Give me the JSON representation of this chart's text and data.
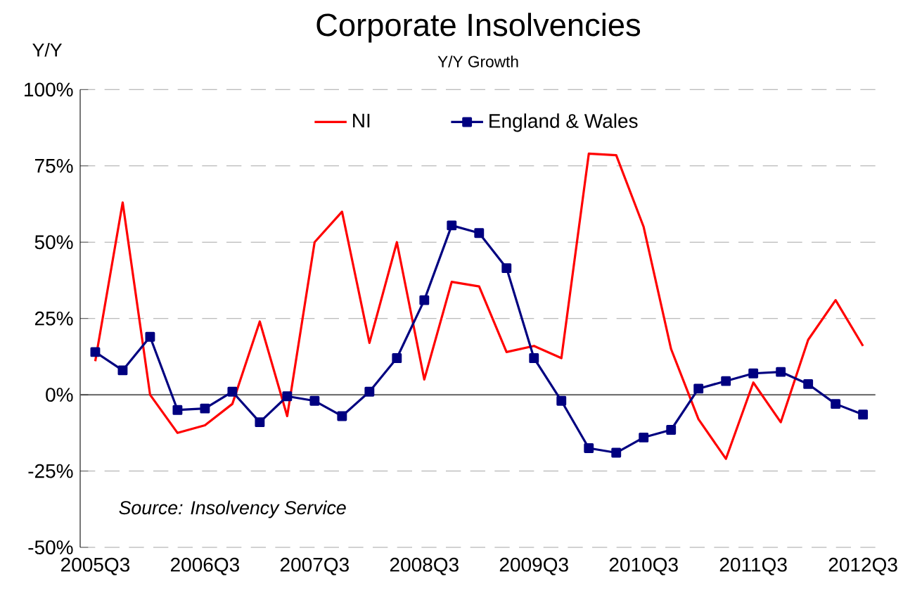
{
  "chart_data": {
    "type": "line",
    "title": "Corporate Insolvencies",
    "subtitle": "Y/Y Growth",
    "ylabel": "Y/Y",
    "categories": [
      "2005Q3",
      null,
      null,
      null,
      "2006Q3",
      null,
      null,
      null,
      "2007Q3",
      null,
      null,
      null,
      "2008Q3",
      null,
      null,
      null,
      "2009Q3",
      null,
      null,
      null,
      "2010Q3",
      null,
      null,
      null,
      "2011Q3",
      null,
      null,
      null,
      "2012Q3"
    ],
    "series": [
      {
        "name": "NI",
        "color": "#ff0000",
        "marker": "none",
        "values": [
          11,
          63,
          0,
          -12.5,
          -10,
          -3,
          24,
          -7,
          50,
          60,
          17,
          50,
          5,
          37,
          35.5,
          14,
          16,
          12,
          79,
          78.5,
          55,
          15,
          -8,
          -21,
          4,
          -9,
          18,
          31,
          16
        ]
      },
      {
        "name": "England & Wales",
        "color": "#000080",
        "marker": "square",
        "values": [
          14,
          8,
          19,
          -5,
          -4.5,
          1,
          -9,
          -0.5,
          -2,
          -7,
          1,
          12,
          31,
          55.5,
          53,
          41.5,
          12,
          -2,
          -17.5,
          -19,
          -14,
          -11.5,
          2,
          4.5,
          7,
          7.5,
          3.5,
          -3,
          -6.5
        ]
      }
    ],
    "ylim": [
      -50,
      100
    ],
    "yticks": [
      {
        "value": -50,
        "label": "-50%"
      },
      {
        "value": -25,
        "label": "-25%"
      },
      {
        "value": 0,
        "label": "0%"
      },
      {
        "value": 25,
        "label": "25%"
      },
      {
        "value": 50,
        "label": "50%"
      },
      {
        "value": 75,
        "label": "75%"
      },
      {
        "value": 100,
        "label": "100%"
      }
    ],
    "grid": "y",
    "legend": "top",
    "line_style": "solid",
    "annotations": [
      "Source: Insolvency Service"
    ]
  }
}
